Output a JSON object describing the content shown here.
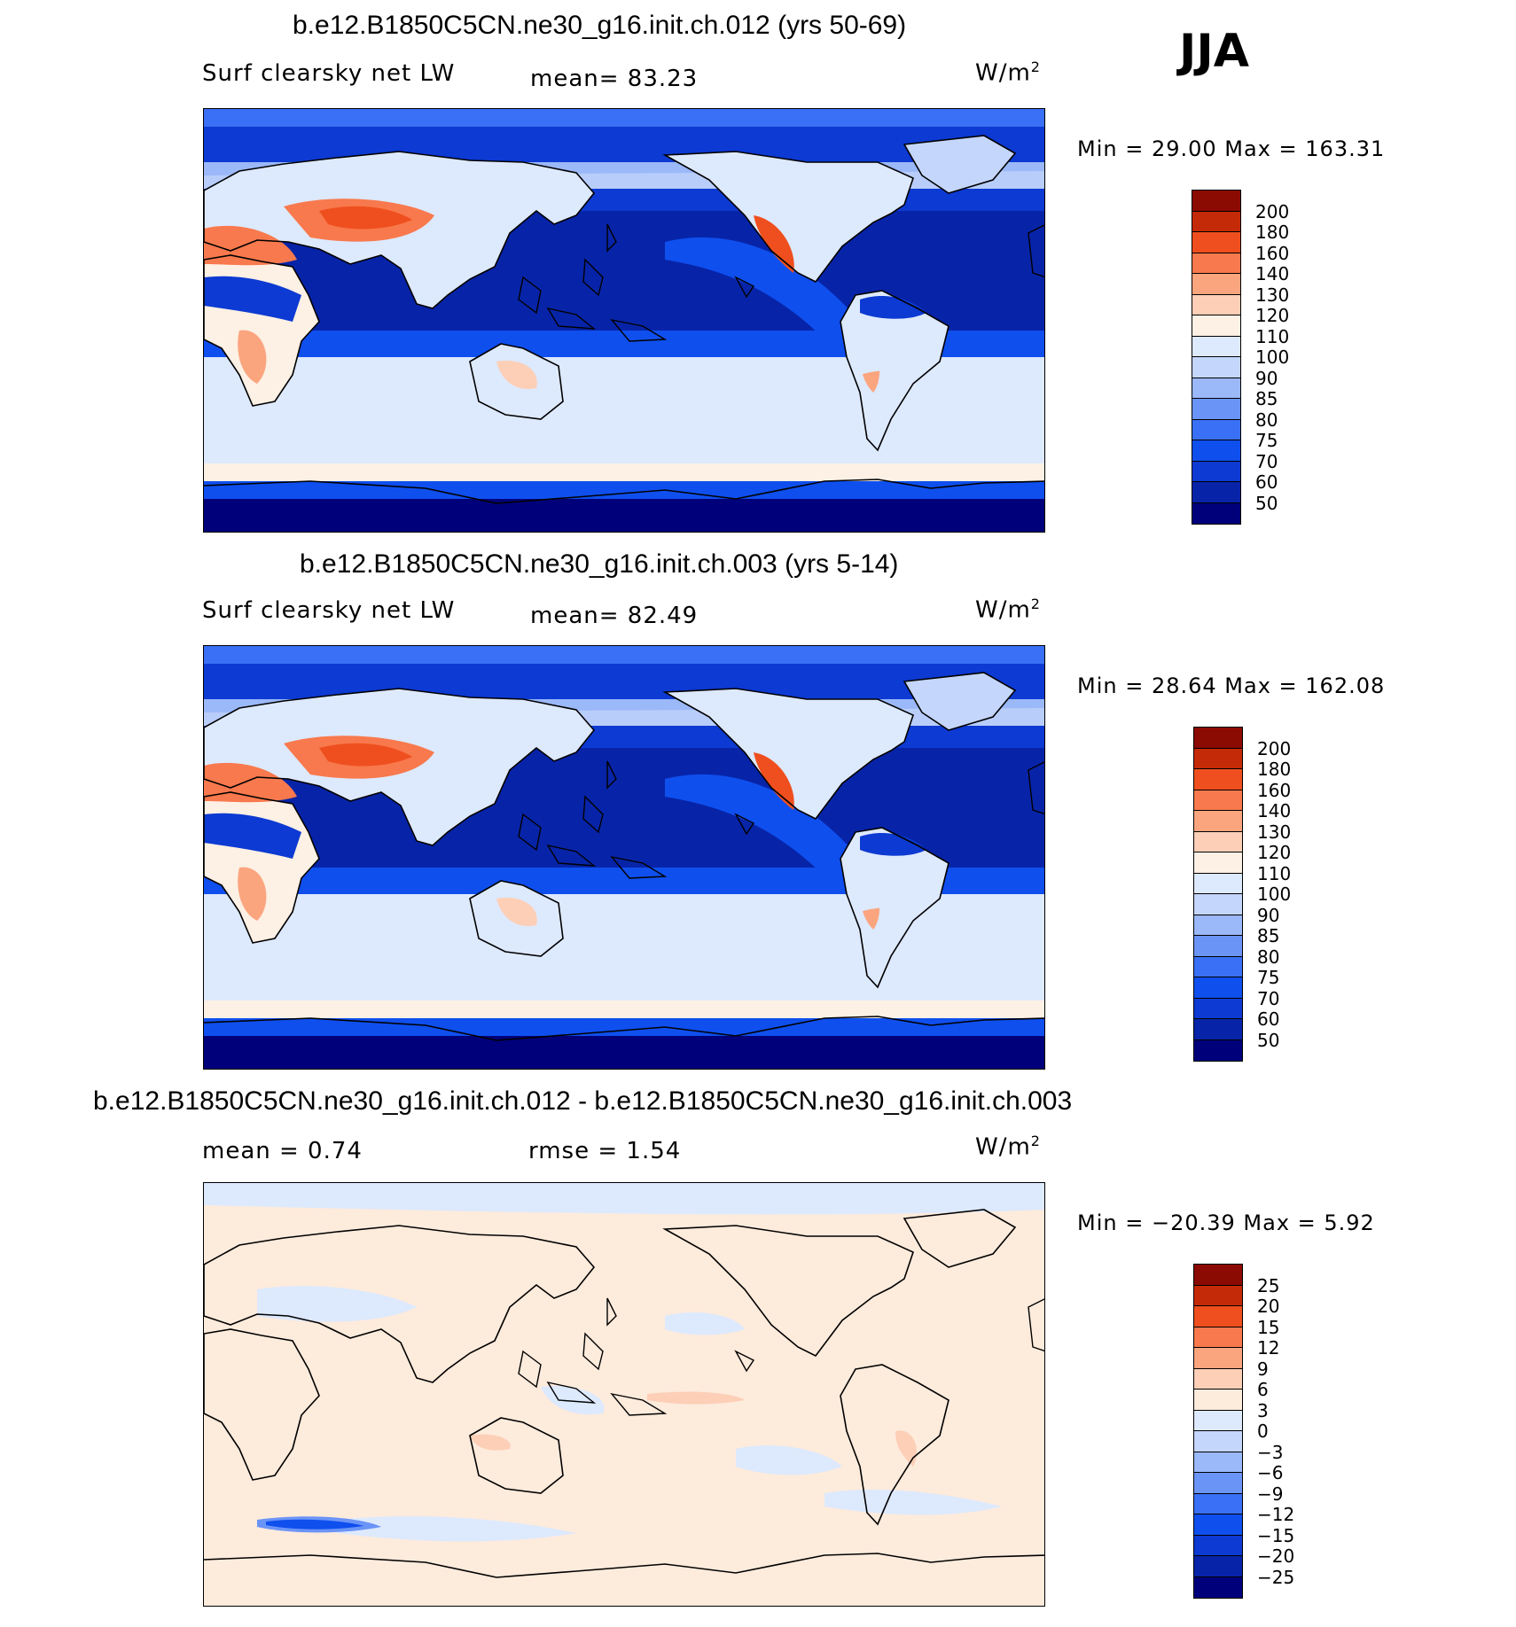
{
  "season": "JJA",
  "colors": {
    "abs_levels": [
      "#00007a",
      "#0724a8",
      "#0c3ad2",
      "#0f4fee",
      "#3a70f5",
      "#6b94f7",
      "#9bb8f9",
      "#c4d6fb",
      "#dde9fd",
      "#fdf0e4",
      "#fdcfb7",
      "#fba57f",
      "#f8794d",
      "#ef4f1e",
      "#c52a08",
      "#8b0a02"
    ],
    "diff_levels": [
      "#00007a",
      "#0724a8",
      "#0c3ad2",
      "#0f4fee",
      "#3a70f5",
      "#6b94f7",
      "#9bb8f9",
      "#c4d6fb",
      "#dde9fd",
      "#fdebdc",
      "#fdcfb7",
      "#fba57f",
      "#f8794d",
      "#ef4f1e",
      "#c52a08",
      "#8b0a02"
    ]
  },
  "panels": [
    {
      "title": "b.e12.B1850C5CN.ne30_g16.init.ch.012 (yrs 50-69)",
      "variable": "Surf clearsky net LW",
      "stat_text": "mean=  83.23",
      "units": "W/m",
      "units_sup": "2",
      "minmax": "Min =   29.00 Max = 163.31"
    },
    {
      "title": "b.e12.B1850C5CN.ne30_g16.init.ch.003 (yrs 5-14)",
      "variable": "Surf clearsky net LW",
      "stat_text": "mean=  82.49",
      "units": "W/m",
      "units_sup": "2",
      "minmax": "Min =   28.64 Max = 162.08"
    },
    {
      "title": "b.e12.B1850C5CN.ne30_g16.init.ch.012 - b.e12.B1850C5CN.ne30_g16.init.ch.003",
      "mean_text": "mean =    0.74",
      "rmse_text": "rmse =    1.54",
      "units": "W/m",
      "units_sup": "2",
      "minmax": "Min = −20.39 Max =    5.92"
    }
  ],
  "chart_data": [
    {
      "type": "heatmap",
      "title": "b.e12.B1850C5CN.ne30_g16.init.ch.012 (yrs 50-69)",
      "variable": "Surf clearsky net LW",
      "units": "W/m2",
      "mean": 83.23,
      "min": 29.0,
      "max": 163.31,
      "colorbar_levels": [
        "200",
        "180",
        "160",
        "140",
        "130",
        "120",
        "110",
        "100",
        "90",
        "85",
        "80",
        "75",
        "70",
        "60",
        "50"
      ]
    },
    {
      "type": "heatmap",
      "title": "b.e12.B1850C5CN.ne30_g16.init.ch.003 (yrs 5-14)",
      "variable": "Surf clearsky net LW",
      "units": "W/m2",
      "mean": 82.49,
      "min": 28.64,
      "max": 162.08,
      "colorbar_levels": [
        "200",
        "180",
        "160",
        "140",
        "130",
        "120",
        "110",
        "100",
        "90",
        "85",
        "80",
        "75",
        "70",
        "60",
        "50"
      ]
    },
    {
      "type": "heatmap",
      "title": "b.e12.B1850C5CN.ne30_g16.init.ch.012 - b.e12.B1850C5CN.ne30_g16.init.ch.003",
      "units": "W/m2",
      "mean": 0.74,
      "rmse": 1.54,
      "min": -20.39,
      "max": 5.92,
      "colorbar_levels": [
        "25",
        "20",
        "15",
        "12",
        "9",
        "6",
        "3",
        "0",
        "−3",
        "−6",
        "−9",
        "−12",
        "−15",
        "−20",
        "−25"
      ]
    }
  ]
}
